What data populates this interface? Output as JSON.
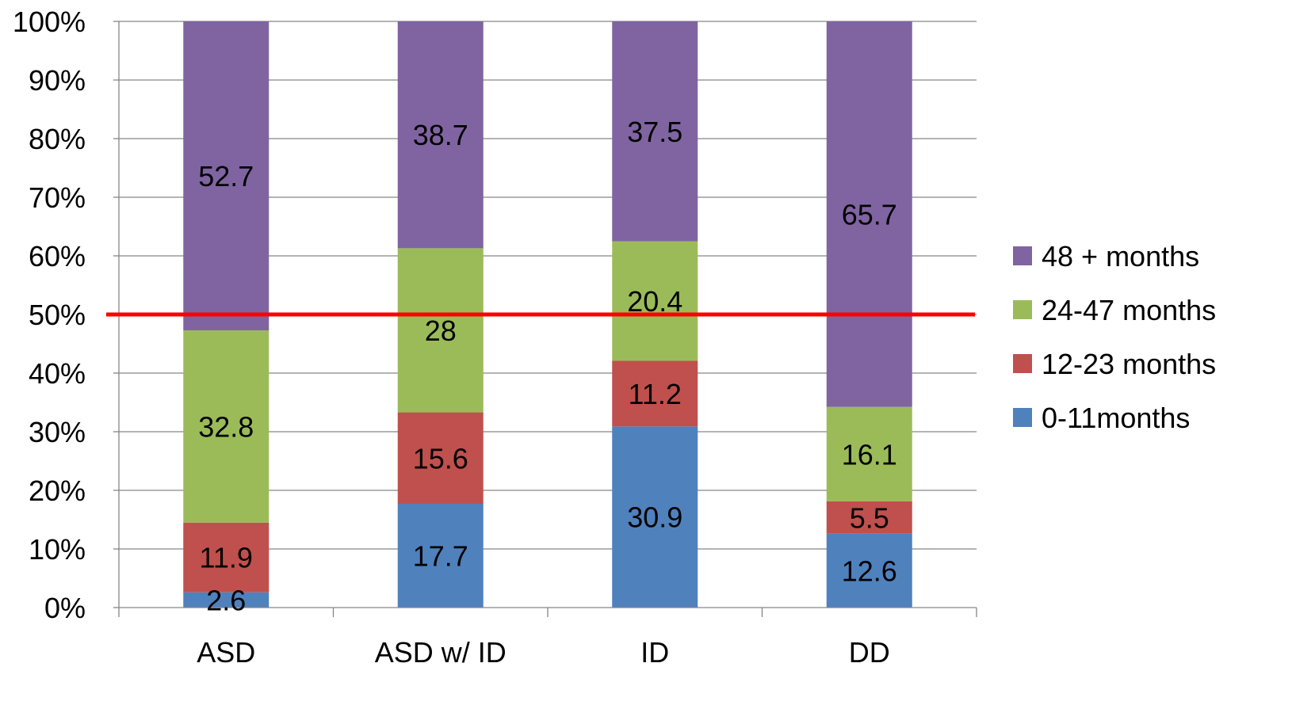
{
  "chart_data": {
    "type": "bar",
    "stacked": true,
    "percent_stacked": true,
    "categories": [
      "ASD",
      "ASD w/ ID",
      "ID",
      "DD"
    ],
    "series": [
      {
        "name": "0-11months",
        "color": "#4F81BD",
        "values": [
          2.6,
          17.7,
          30.9,
          12.6
        ]
      },
      {
        "name": "12-23 months",
        "color": "#C0504D",
        "values": [
          11.9,
          15.6,
          11.2,
          5.5
        ]
      },
      {
        "name": "24-47 months",
        "color": "#9BBB59",
        "values": [
          32.8,
          28,
          20.4,
          16.1
        ]
      },
      {
        "name": "48 + months",
        "color": "#8064A2",
        "values": [
          52.7,
          38.7,
          37.5,
          65.7
        ]
      }
    ],
    "data_labels": [
      [
        "2.6",
        "17.7",
        "30.9",
        "12.6"
      ],
      [
        "11.9",
        "15.6",
        "11.2",
        "5.5"
      ],
      [
        "32.8",
        "28",
        "20.4",
        "16.1"
      ],
      [
        "52.7",
        "38.7",
        "37.5",
        "65.7"
      ]
    ],
    "y_ticks": [
      "0%",
      "10%",
      "20%",
      "30%",
      "40%",
      "50%",
      "60%",
      "70%",
      "80%",
      "90%",
      "100%"
    ],
    "ylim": [
      0,
      100
    ],
    "grid": true,
    "reference_line": {
      "value": 50,
      "color": "#FF0000"
    },
    "legend_position": "right",
    "legend_order": [
      3,
      2,
      1,
      0
    ]
  }
}
